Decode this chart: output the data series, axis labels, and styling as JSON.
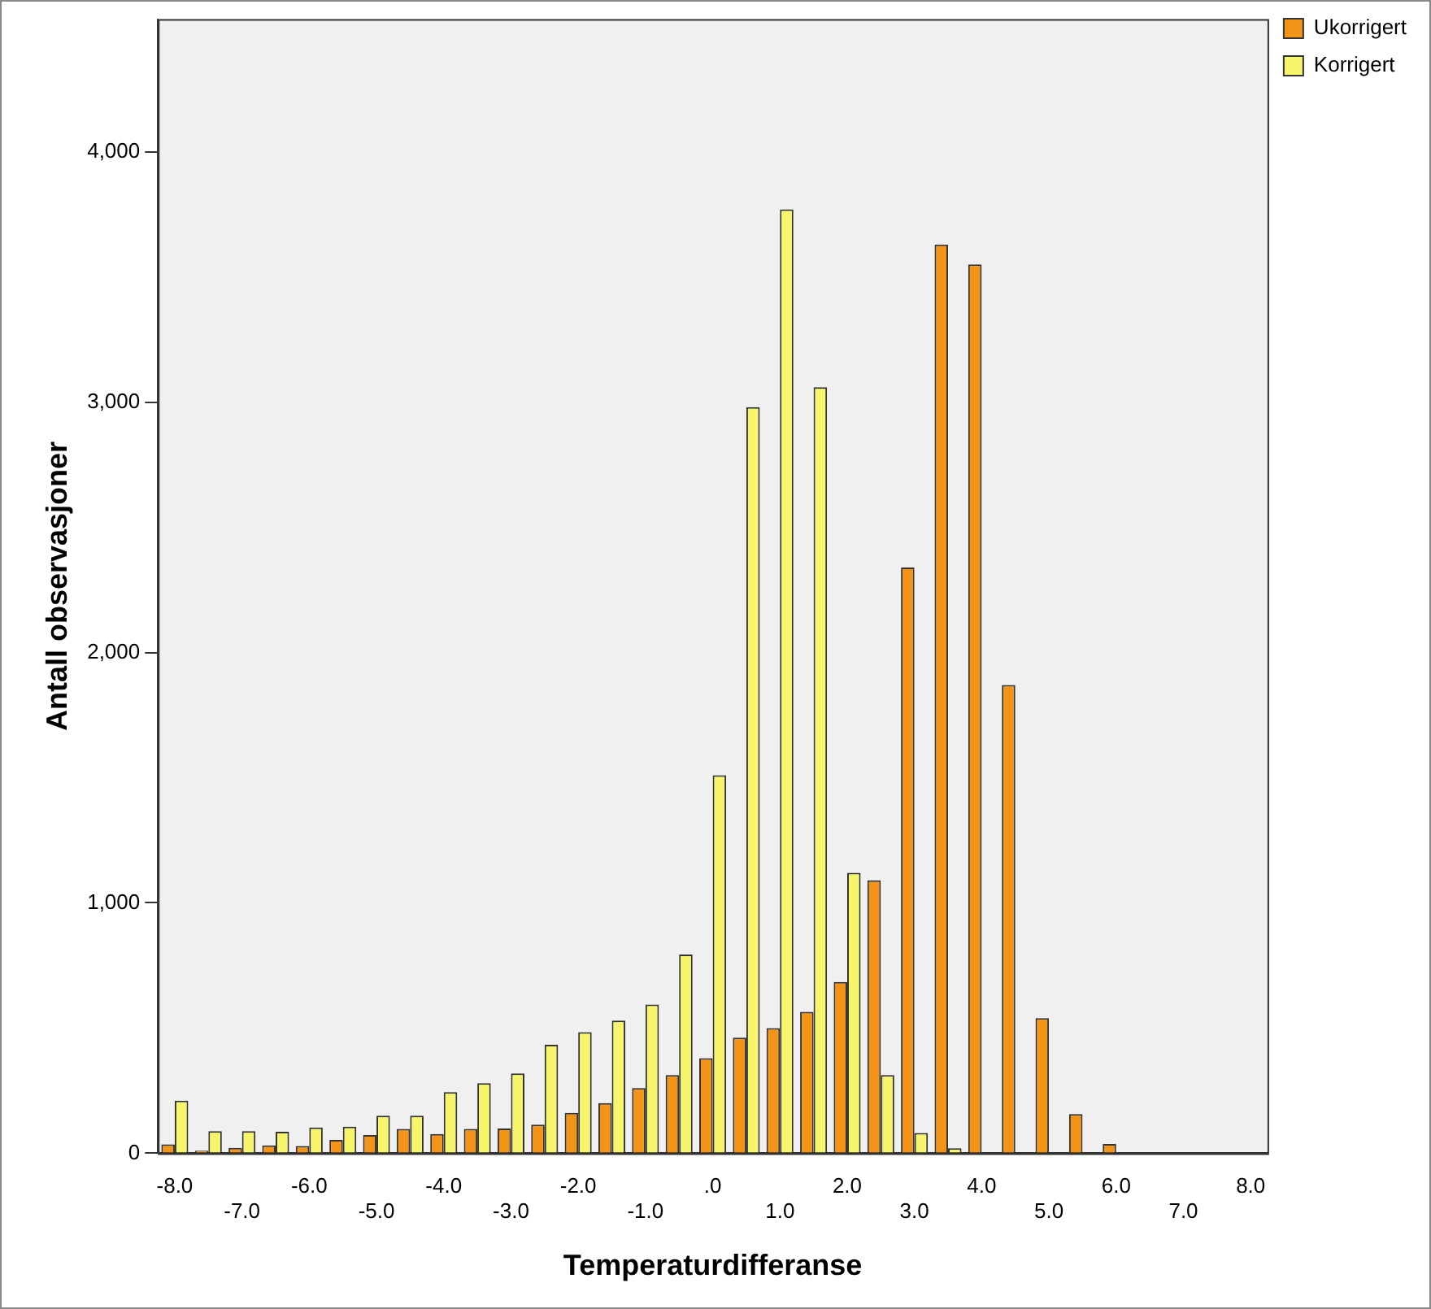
{
  "chart_data": {
    "type": "bar",
    "xlabel": "Temperaturdifferanse",
    "ylabel": "Antall observasjoner",
    "categories": [
      "-8.0",
      null,
      "-7.0",
      null,
      "-6.0",
      null,
      "-5.0",
      null,
      "-4.0",
      null,
      "-3.0",
      null,
      "-2.0",
      null,
      "-1.0",
      null,
      ".0",
      null,
      "1.0",
      null,
      "2.0",
      null,
      "3.0",
      null,
      "4.0",
      null,
      "5.0",
      null,
      "6.0",
      null,
      "7.0",
      null,
      "8.0"
    ],
    "series": [
      {
        "name": "Ukorrigert",
        "color": "#f39416",
        "values": [
          35,
          10,
          22,
          31,
          29,
          53,
          73,
          97,
          77,
          97,
          99,
          114,
          161,
          200,
          260,
          312,
          380,
          462,
          500,
          565,
          684,
          1090,
          2340,
          3630,
          3550,
          1870,
          540,
          156,
          37,
          null,
          null,
          null,
          null
        ]
      },
      {
        "name": "Korrigert",
        "color": "#f7f56c",
        "values": [
          210,
          88,
          88,
          86,
          103,
          106,
          150,
          150,
          244,
          280,
          319,
          433,
          484,
          530,
          594,
          794,
          1510,
          2980,
          3770,
          3060,
          1120,
          312,
          81,
          20,
          null,
          0,
          0,
          0,
          0,
          0,
          0,
          0,
          0
        ]
      }
    ],
    "ylim": [
      0,
      4530
    ],
    "yticks": [
      0,
      {
        "value": 1000,
        "label": "1,000"
      },
      {
        "value": 2000,
        "label": "2,000"
      },
      {
        "value": 3000,
        "label": "3,000"
      },
      {
        "value": 4000,
        "label": "4,000"
      }
    ],
    "grid": false,
    "legend": "top right"
  }
}
